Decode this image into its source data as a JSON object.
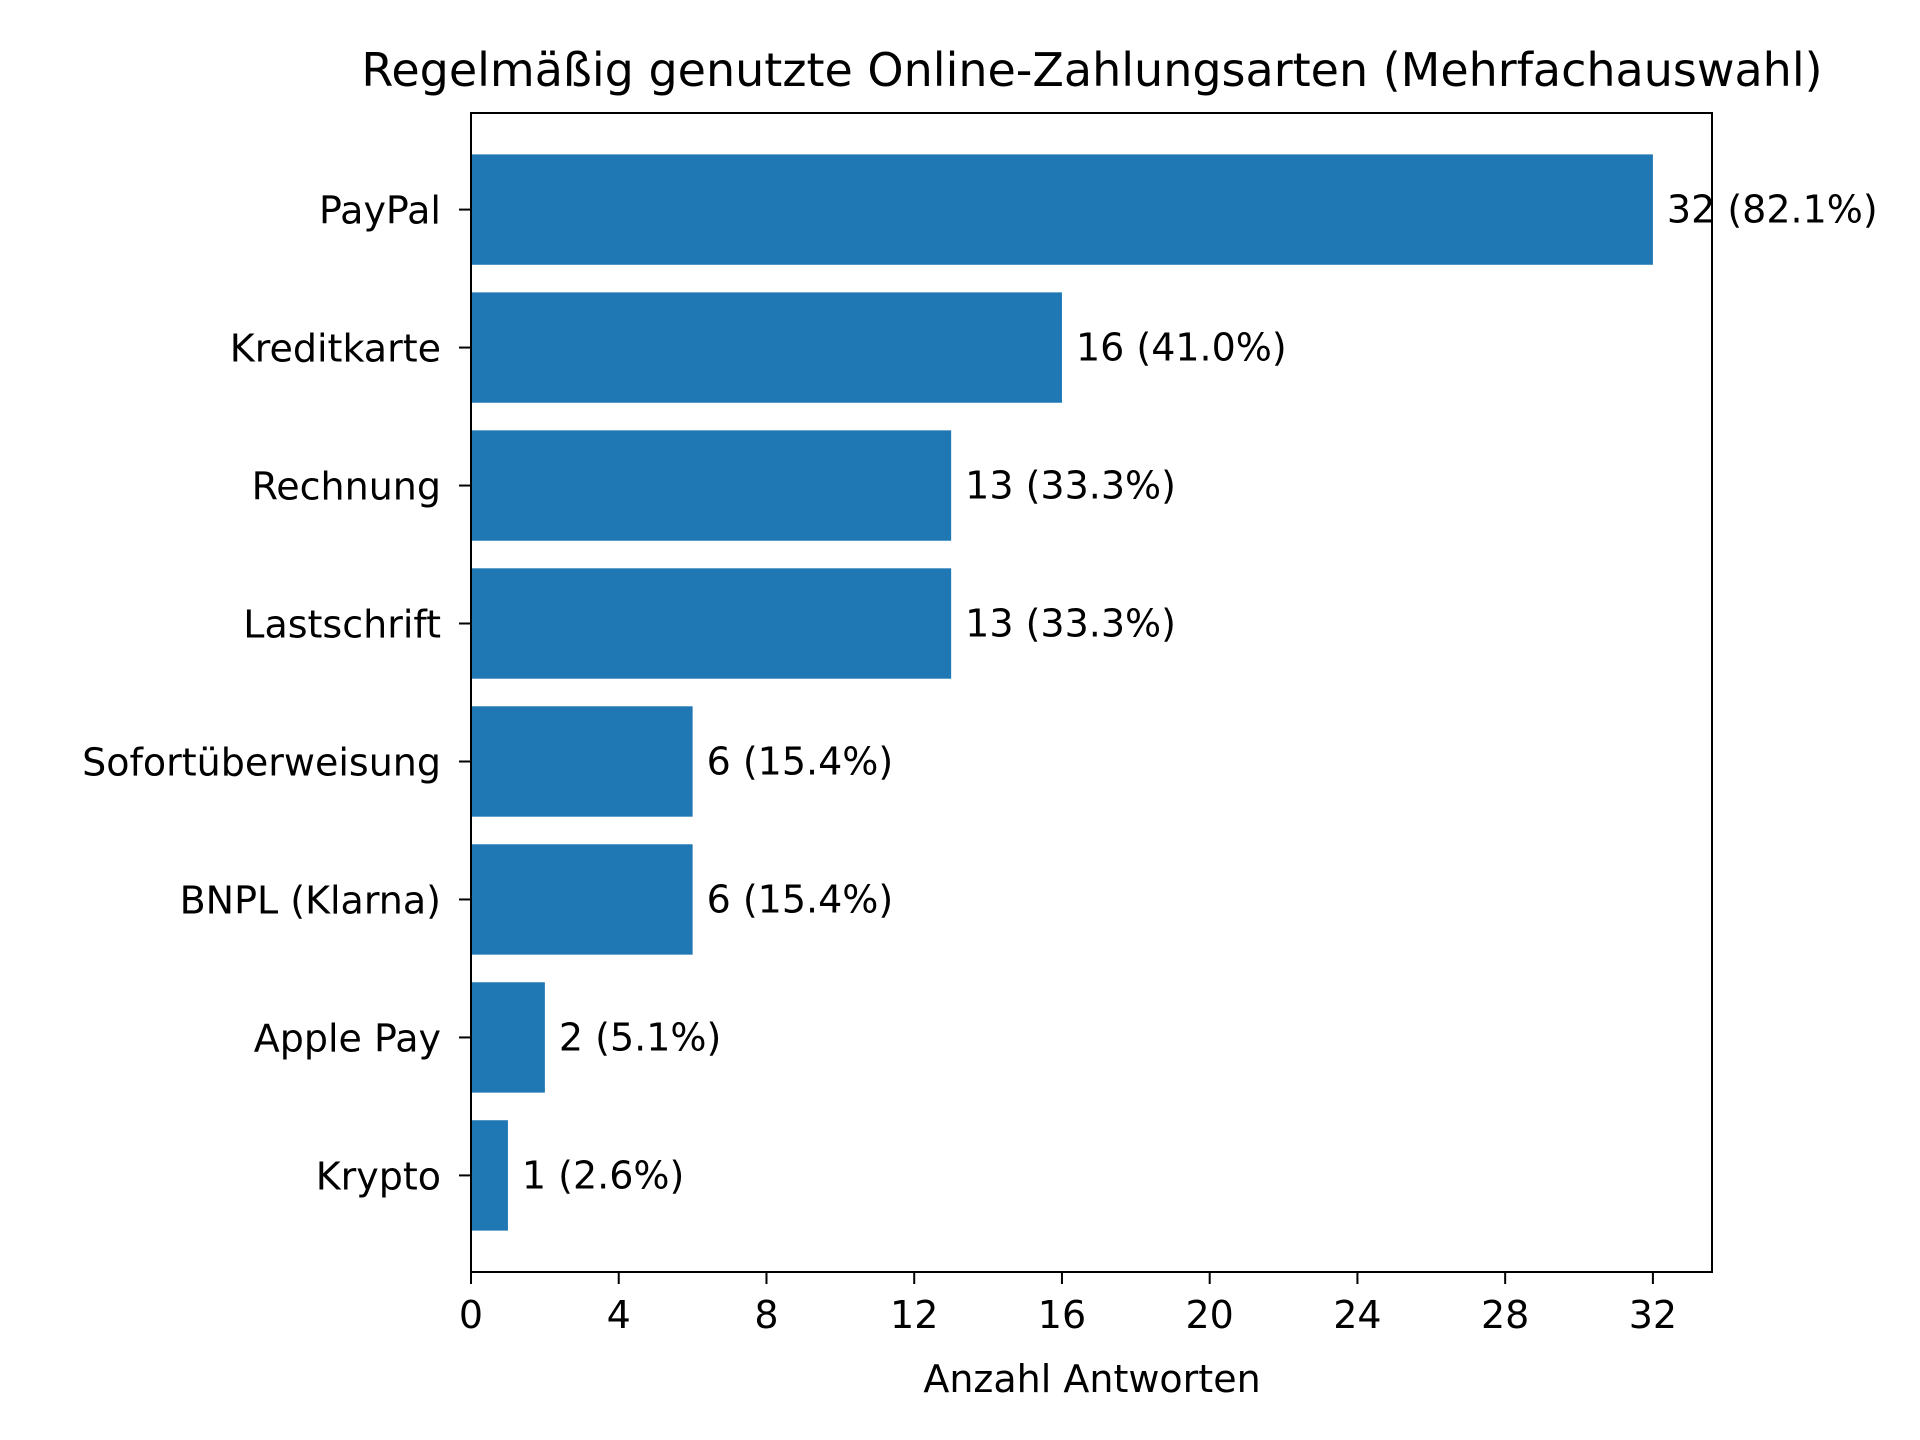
{
  "chart_data": {
    "type": "bar",
    "orientation": "horizontal",
    "title": "Regelmäßig genutzte Online-Zahlungsarten (Mehrfachauswahl)",
    "xlabel": "Anzahl Antworten",
    "ylabel": "",
    "categories": [
      "PayPal",
      "Kreditkarte",
      "Rechnung",
      "Lastschrift",
      "Sofortüberweisung",
      "BNPL (Klarna)",
      "Apple Pay",
      "Krypto"
    ],
    "values": [
      32,
      16,
      13,
      13,
      6,
      6,
      2,
      1
    ],
    "value_labels": [
      "32 (82.1%)",
      "16 (41.0%)",
      "13 (33.3%)",
      "13 (33.3%)",
      "6 (15.4%)",
      "6 (15.4%)",
      "2 (5.1%)",
      "1 (2.6%)"
    ],
    "xticks": [
      0,
      4,
      8,
      12,
      16,
      20,
      24,
      28,
      32
    ],
    "xlim": [
      0,
      33.6
    ],
    "grid": false,
    "bar_color": "#1f77b4"
  }
}
